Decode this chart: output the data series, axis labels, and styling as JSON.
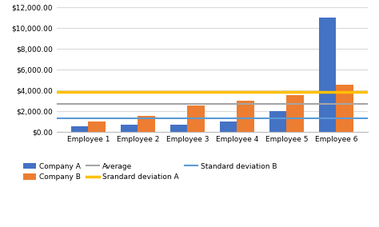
{
  "categories": [
    "Employee 1",
    "Employee 2",
    "Employee 3",
    "Employee 4",
    "Employee 5",
    "Employee 6"
  ],
  "company_a": [
    500,
    700,
    700,
    1000,
    2000,
    11000
  ],
  "company_b": [
    1000,
    1500,
    2500,
    3000,
    3500,
    4500
  ],
  "average": 2700,
  "std_dev_a": 3800,
  "std_dev_b": 1300,
  "color_a": "#4472C4",
  "color_b": "#ED7D31",
  "color_avg": "#A5A5A5",
  "color_std_a": "#FFC000",
  "color_std_b": "#5B9BD5",
  "ylim": [
    0,
    12000
  ],
  "yticks": [
    0,
    2000,
    4000,
    6000,
    8000,
    10000,
    12000
  ],
  "bg_color": "#FFFFFF",
  "legend_labels": [
    "Company A",
    "Company B",
    "Average",
    "Srandard deviation A",
    "Standard deviation B"
  ]
}
